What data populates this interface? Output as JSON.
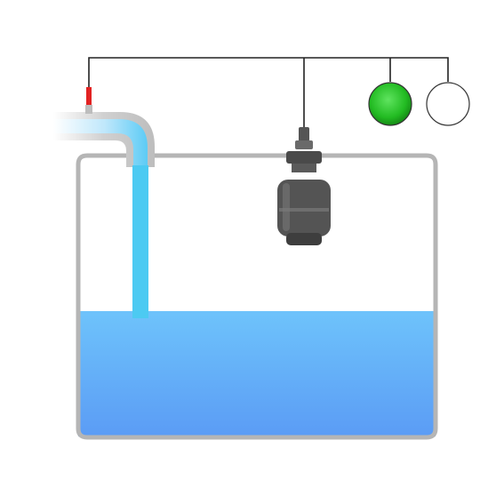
{
  "diagram": {
    "water_level_fraction": 0.45,
    "indicators": [
      {
        "state": "on",
        "color": "#22bb22"
      },
      {
        "state": "off",
        "color": "#ffffff"
      }
    ],
    "colors": {
      "water_top": "#6ec3fb",
      "water_bottom": "#5b9cf5",
      "inflow_stream": "#4ccaf2",
      "tank_outline": "#b5b5b5",
      "pipe": "#c8c8c8",
      "valve": "#e22222",
      "wire": "#222222",
      "sensor_body": "#555555"
    },
    "icons": [
      "inlet-pipe-icon",
      "valve-icon",
      "float-switch-icon",
      "indicator-lamp-icon"
    ]
  }
}
